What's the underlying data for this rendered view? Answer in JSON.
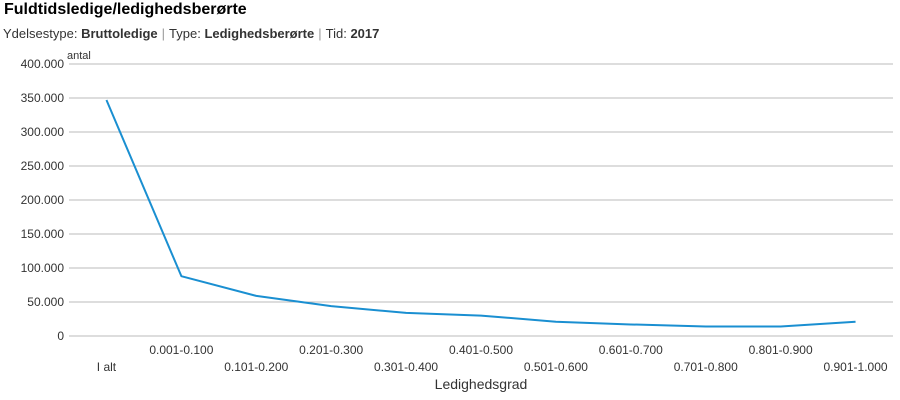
{
  "header": {
    "title": "Fuldtidsledige/ledighedsberørte",
    "filters": [
      {
        "label": "Ydelsestype:",
        "value": "Bruttoledige"
      },
      {
        "label": "Type:",
        "value": "Ledighedsberørte"
      },
      {
        "label": "Tid:",
        "value": "2017"
      }
    ],
    "separator": "|"
  },
  "colors": {
    "line": "#1a8fd1",
    "grid": "#bbbbbb",
    "text": "#333333"
  },
  "chart_data": {
    "type": "line",
    "title": "Fuldtidsledige/ledighedsberørte",
    "xlabel": "Ledighedsgrad",
    "ylabel": "antal",
    "categories": [
      "I alt",
      "0.001-0.100",
      "0.101-0.200",
      "0.201-0.300",
      "0.301-0.400",
      "0.401-0.500",
      "0.501-0.600",
      "0.601-0.700",
      "0.701-0.800",
      "0.801-0.900",
      "0.901-1.000"
    ],
    "values": [
      347000,
      88000,
      59000,
      44000,
      34000,
      30000,
      21000,
      17000,
      14000,
      14000,
      21000
    ],
    "yticks": [
      "0",
      "50.000",
      "100.000",
      "150.000",
      "200.000",
      "250.000",
      "300.000",
      "350.000",
      "400.000"
    ],
    "ylim": [
      0,
      400000
    ],
    "grid": true
  }
}
